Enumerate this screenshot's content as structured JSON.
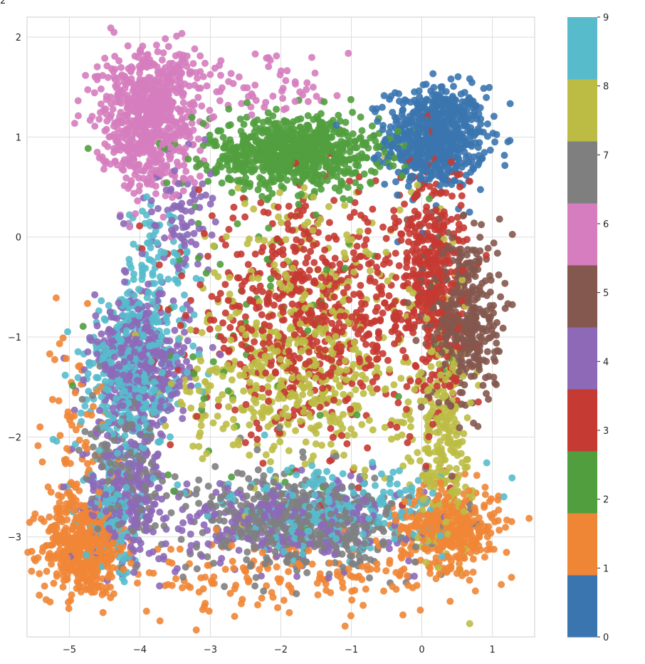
{
  "chart_data": {
    "type": "scatter",
    "title": "",
    "xlabel": "",
    "ylabel": "",
    "xlim": [
      -5.6,
      1.6
    ],
    "ylim": [
      -4.0,
      2.2
    ],
    "x_ticks": [
      "−5",
      "−4",
      "−3",
      "−2",
      "−1",
      "0",
      "1"
    ],
    "x_tick_values": [
      -5,
      -4,
      -3,
      -2,
      -1,
      0,
      1
    ],
    "y_ticks": [
      "2",
      "1",
      "0",
      "−1",
      "−2",
      "−3"
    ],
    "y_tick_values": [
      2,
      1,
      0,
      -1,
      -2,
      -3
    ],
    "grid": true,
    "colorbar": {
      "ticks": [
        "0",
        "1",
        "2",
        "3",
        "4",
        "5",
        "6",
        "7",
        "8",
        "9"
      ],
      "range": [
        0,
        9
      ],
      "colormap": "tab10"
    },
    "class_colors": [
      "#3b75af",
      "#ef8636",
      "#519e3e",
      "#c53a32",
      "#8d69b8",
      "#84584e",
      "#d57dbe",
      "#7f7f7f",
      "#bcbc45",
      "#58bbcc"
    ],
    "clusters": [
      {
        "class": 0,
        "points": 700,
        "center": [
          0.2,
          1.0
        ],
        "spread": [
          0.35,
          0.25
        ]
      },
      {
        "class": 1,
        "points": 450,
        "center": [
          -4.8,
          -3.1
        ],
        "spread": [
          0.3,
          0.25
        ]
      },
      {
        "class": 1,
        "points": 380,
        "center": [
          0.4,
          -2.9
        ],
        "spread": [
          0.35,
          0.2
        ]
      },
      {
        "class": 1,
        "points": 160,
        "center": [
          -1.8,
          -3.4
        ],
        "spread": [
          1.2,
          0.2
        ]
      },
      {
        "class": 1,
        "points": 90,
        "center": [
          -4.9,
          -2.1
        ],
        "spread": [
          0.25,
          0.6
        ]
      },
      {
        "class": 2,
        "points": 800,
        "center": [
          -1.8,
          0.85
        ],
        "spread": [
          0.6,
          0.18
        ]
      },
      {
        "class": 2,
        "points": 80,
        "center": [
          -2.3,
          -0.7
        ],
        "spread": [
          1.2,
          0.9
        ]
      },
      {
        "class": 3,
        "points": 650,
        "center": [
          -1.6,
          -0.8
        ],
        "spread": [
          0.8,
          0.55
        ]
      },
      {
        "class": 3,
        "points": 400,
        "center": [
          0.15,
          -0.4
        ],
        "spread": [
          0.25,
          0.6
        ]
      },
      {
        "class": 4,
        "points": 420,
        "center": [
          -4.0,
          -1.3
        ],
        "spread": [
          0.35,
          0.35
        ]
      },
      {
        "class": 4,
        "points": 260,
        "center": [
          -4.2,
          -2.6
        ],
        "spread": [
          0.3,
          0.3
        ]
      },
      {
        "class": 4,
        "points": 300,
        "center": [
          -1.9,
          -2.85
        ],
        "spread": [
          0.9,
          0.2
        ]
      },
      {
        "class": 4,
        "points": 80,
        "center": [
          -3.5,
          0.2
        ],
        "spread": [
          0.25,
          0.3
        ]
      },
      {
        "class": 5,
        "points": 420,
        "center": [
          0.6,
          -0.8
        ],
        "spread": [
          0.25,
          0.45
        ]
      },
      {
        "class": 6,
        "points": 700,
        "center": [
          -3.9,
          1.2
        ],
        "spread": [
          0.35,
          0.35
        ]
      },
      {
        "class": 6,
        "points": 90,
        "center": [
          -2.5,
          1.5
        ],
        "spread": [
          0.8,
          0.2
        ]
      },
      {
        "class": 7,
        "points": 500,
        "center": [
          -1.7,
          -2.85
        ],
        "spread": [
          0.75,
          0.25
        ]
      },
      {
        "class": 7,
        "points": 140,
        "center": [
          -4.2,
          -2.4
        ],
        "spread": [
          0.3,
          0.35
        ]
      },
      {
        "class": 8,
        "points": 450,
        "center": [
          -1.8,
          -1.4
        ],
        "spread": [
          0.8,
          0.45
        ]
      },
      {
        "class": 8,
        "points": 260,
        "center": [
          0.3,
          -2.0
        ],
        "spread": [
          0.2,
          0.6
        ]
      },
      {
        "class": 8,
        "points": 120,
        "center": [
          -1.3,
          -0.3
        ],
        "spread": [
          0.8,
          0.6
        ]
      },
      {
        "class": 9,
        "points": 380,
        "center": [
          -4.1,
          -1.4
        ],
        "spread": [
          0.35,
          0.4
        ]
      },
      {
        "class": 9,
        "points": 120,
        "center": [
          -3.8,
          -0.4
        ],
        "spread": [
          0.25,
          0.45
        ]
      },
      {
        "class": 9,
        "points": 300,
        "center": [
          -1.3,
          -2.75
        ],
        "spread": [
          0.8,
          0.2
        ]
      },
      {
        "class": 9,
        "points": 140,
        "center": [
          -4.4,
          -2.8
        ],
        "spread": [
          0.2,
          0.3
        ]
      }
    ]
  }
}
